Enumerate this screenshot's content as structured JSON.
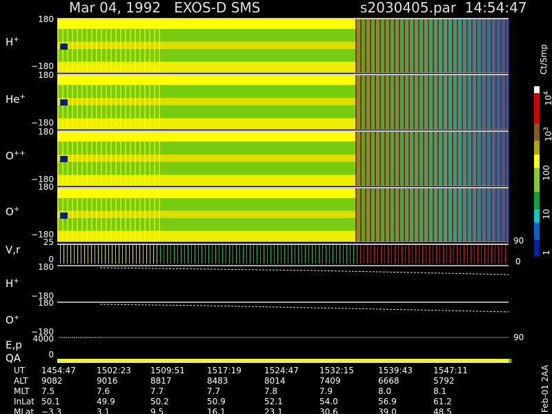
{
  "header": {
    "title": "Mar 04, 1992   EXOS-D SMS",
    "file": "s2030405.par  14:54:47"
  },
  "panels": [
    {
      "label": "H",
      "sup": "+",
      "top": "180",
      "bottom": "−180"
    },
    {
      "label": "He",
      "sup": "+",
      "top": "180",
      "bottom": "−180"
    },
    {
      "label": "O",
      "sup": "++",
      "top": "180",
      "bottom": "−180"
    },
    {
      "label": "O",
      "sup": "+",
      "top": "180",
      "bottom": "−180"
    }
  ],
  "vr": {
    "label": "V,r",
    "top": "25",
    "bottom": "0",
    "right_top": "90",
    "right_bottom": "0"
  },
  "pitch_panels": [
    {
      "label": "H",
      "sup": "+",
      "top": "180",
      "bottom": "−180"
    },
    {
      "label": "O",
      "sup": "+",
      "top": "180",
      "bottom": "−180"
    }
  ],
  "ep": {
    "label": "E,p",
    "top": "4000",
    "right": "90"
  },
  "qa": {
    "label": "QA",
    "tick": "0"
  },
  "colorbar": {
    "unit": "Ct/Smp",
    "ticks": [
      {
        "base": "10",
        "sup": "4"
      },
      {
        "base": "10",
        "sup": "3"
      },
      "100",
      "10",
      "1"
    ]
  },
  "table": {
    "rows": [
      {
        "label": "UT",
        "values": [
          "1454:47",
          "1502:23",
          "1509:51",
          "1517:19",
          "1524:47",
          "1532:15",
          "1539:43",
          "1547:11"
        ]
      },
      {
        "label": "ALT",
        "values": [
          "9082",
          "9016",
          "8817",
          "8483",
          "8014",
          "7409",
          "6668",
          "5792"
        ]
      },
      {
        "label": "MLT",
        "values": [
          "7.5",
          "7.6",
          "7.7",
          "7.7",
          "7.8",
          "7.9",
          "8.0",
          "8.1"
        ]
      },
      {
        "label": "InLat",
        "values": [
          "50.1",
          "49.9",
          "50.2",
          "50.9",
          "52.1",
          "54.0",
          "56.9",
          "61.2"
        ]
      },
      {
        "label": "MLat",
        "values": [
          "−3.3",
          "3.1",
          "9.5",
          "16.1",
          "23.1",
          "30.6",
          "39.0",
          "48.5"
        ]
      }
    ]
  },
  "footer": "Feb-01 2AA"
}
